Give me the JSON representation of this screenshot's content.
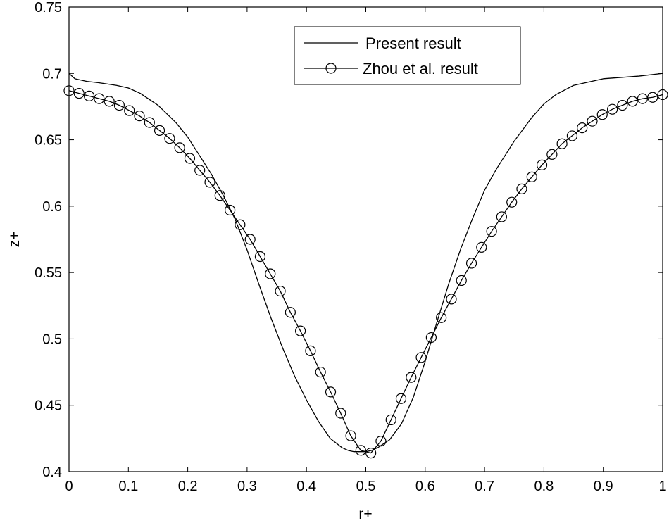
{
  "chart_data": {
    "type": "line",
    "xlabel": "r+",
    "ylabel": "z+",
    "xlim": [
      0,
      1
    ],
    "ylim": [
      0.4,
      0.75
    ],
    "xticks": [
      0,
      0.1,
      0.2,
      0.3,
      0.4,
      0.5,
      0.6,
      0.7,
      0.8,
      0.9,
      1
    ],
    "xtick_labels": [
      "0",
      "0.1",
      "0.2",
      "0.3",
      "0.4",
      "0.5",
      "0.6",
      "0.7",
      "0.8",
      "0.9",
      "1"
    ],
    "yticks": [
      0.4,
      0.45,
      0.5,
      0.55,
      0.6,
      0.65,
      0.7,
      0.75
    ],
    "ytick_labels": [
      "0.4",
      "0.45",
      "0.5",
      "0.55",
      "0.6",
      "0.65",
      "0.7",
      "0.75"
    ],
    "grid": false,
    "legend_position": "top-right",
    "series": [
      {
        "name": "Present result",
        "style": "line",
        "color": "#000000",
        "x": [
          0,
          0.01,
          0.03,
          0.05,
          0.08,
          0.1,
          0.12,
          0.15,
          0.18,
          0.2,
          0.22,
          0.24,
          0.26,
          0.28,
          0.3,
          0.32,
          0.34,
          0.36,
          0.38,
          0.4,
          0.42,
          0.44,
          0.46,
          0.47,
          0.48,
          0.49,
          0.5,
          0.51,
          0.52,
          0.54,
          0.56,
          0.58,
          0.6,
          0.62,
          0.64,
          0.66,
          0.68,
          0.7,
          0.72,
          0.75,
          0.78,
          0.8,
          0.82,
          0.85,
          0.88,
          0.9,
          0.93,
          0.96,
          1.0
        ],
        "y": [
          0.7,
          0.696,
          0.694,
          0.693,
          0.691,
          0.689,
          0.685,
          0.676,
          0.663,
          0.652,
          0.638,
          0.624,
          0.608,
          0.59,
          0.567,
          0.541,
          0.516,
          0.493,
          0.472,
          0.454,
          0.438,
          0.425,
          0.418,
          0.416,
          0.415,
          0.415,
          0.415,
          0.416,
          0.418,
          0.424,
          0.436,
          0.456,
          0.483,
          0.513,
          0.542,
          0.568,
          0.591,
          0.612,
          0.628,
          0.649,
          0.667,
          0.677,
          0.684,
          0.691,
          0.694,
          0.696,
          0.697,
          0.698,
          0.7
        ]
      },
      {
        "name": "Zhou et al. result",
        "style": "line-circle",
        "color": "#000000",
        "x": [
          0,
          0.0169,
          0.0339,
          0.0508,
          0.0678,
          0.0847,
          0.1017,
          0.1186,
          0.1356,
          0.1525,
          0.1695,
          0.1864,
          0.2034,
          0.2203,
          0.2373,
          0.2542,
          0.2712,
          0.2881,
          0.3051,
          0.322,
          0.339,
          0.3559,
          0.3729,
          0.3898,
          0.4068,
          0.4237,
          0.4407,
          0.4576,
          0.4746,
          0.4915,
          0.5085,
          0.5254,
          0.5424,
          0.5593,
          0.5763,
          0.5932,
          0.6102,
          0.6271,
          0.6441,
          0.661,
          0.678,
          0.6949,
          0.7119,
          0.7288,
          0.7458,
          0.7627,
          0.7797,
          0.7966,
          0.8136,
          0.8305,
          0.8475,
          0.8644,
          0.8814,
          0.8983,
          0.9153,
          0.9322,
          0.9492,
          0.9661,
          0.9831,
          1.0
        ],
        "y": [
          0.687,
          0.685,
          0.683,
          0.681,
          0.679,
          0.676,
          0.672,
          0.668,
          0.663,
          0.657,
          0.651,
          0.644,
          0.636,
          0.627,
          0.618,
          0.608,
          0.597,
          0.586,
          0.575,
          0.562,
          0.549,
          0.536,
          0.52,
          0.506,
          0.491,
          0.475,
          0.46,
          0.444,
          0.427,
          0.416,
          0.414,
          0.423,
          0.439,
          0.455,
          0.471,
          0.486,
          0.501,
          0.516,
          0.53,
          0.544,
          0.557,
          0.569,
          0.581,
          0.592,
          0.603,
          0.613,
          0.622,
          0.631,
          0.639,
          0.647,
          0.653,
          0.659,
          0.664,
          0.669,
          0.673,
          0.676,
          0.679,
          0.681,
          0.682,
          0.684
        ]
      }
    ]
  }
}
